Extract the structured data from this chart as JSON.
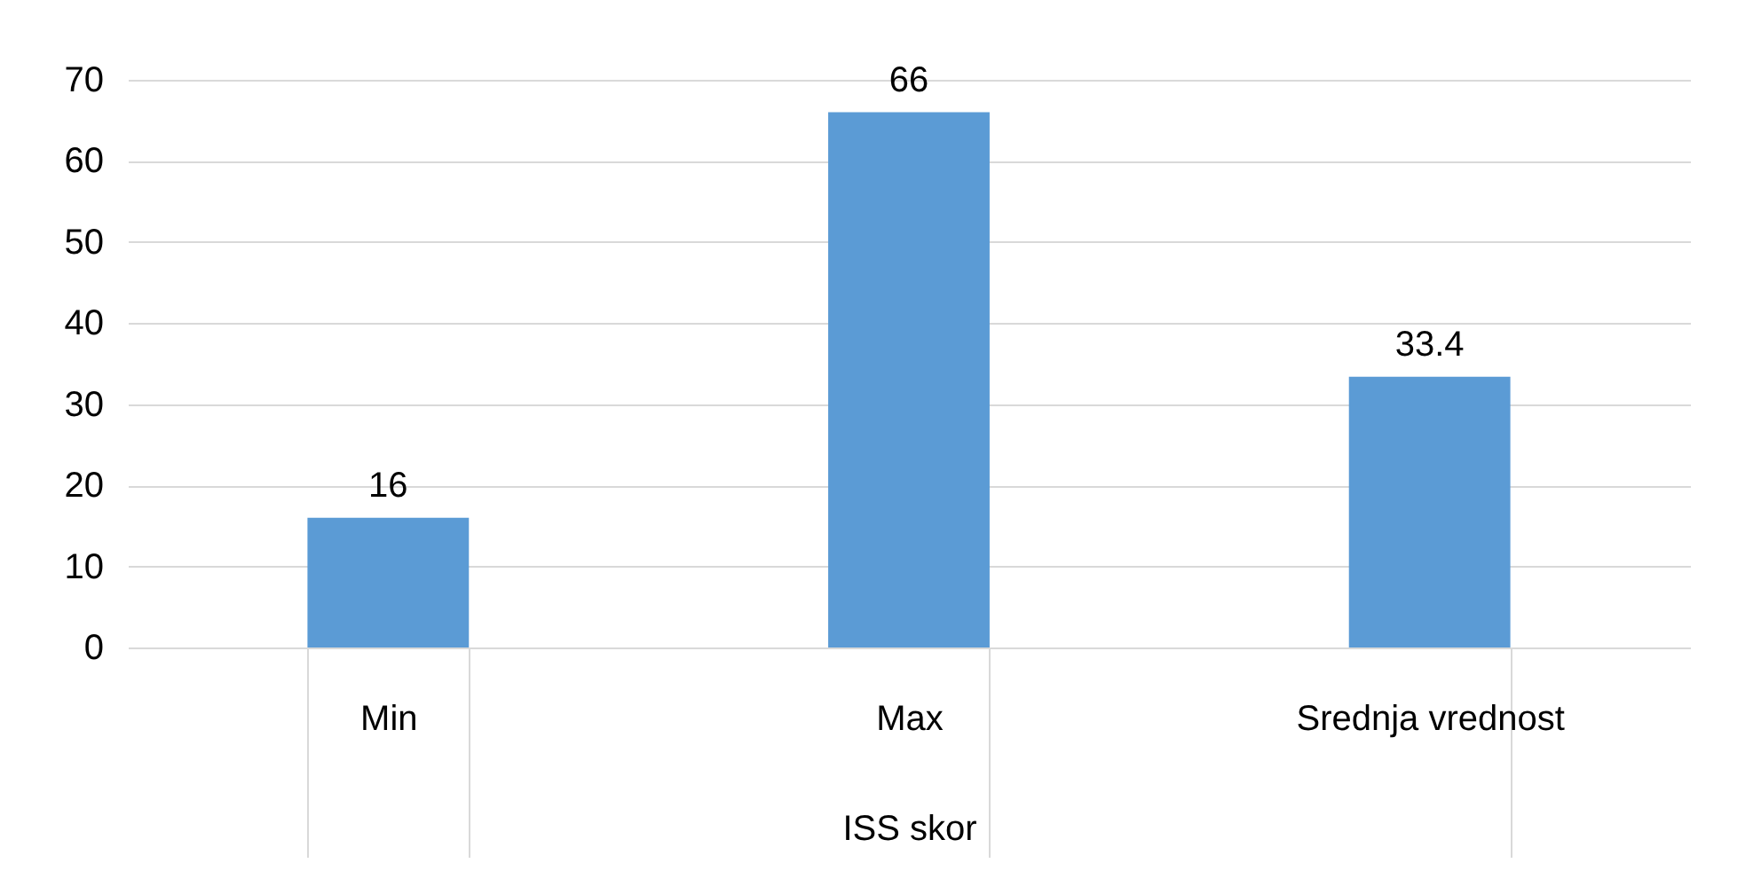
{
  "chart_data": {
    "type": "bar",
    "xlabel": "ISS skor",
    "categories": [
      "Min",
      "Max",
      "Srednja vrednost"
    ],
    "values": [
      16,
      66,
      33.4
    ],
    "color": "#5b9bd5",
    "ylim": [
      0,
      70
    ],
    "yticks": [
      0,
      10,
      20,
      30,
      40,
      50,
      60,
      70
    ],
    "grid": "y",
    "data_labels": true
  }
}
